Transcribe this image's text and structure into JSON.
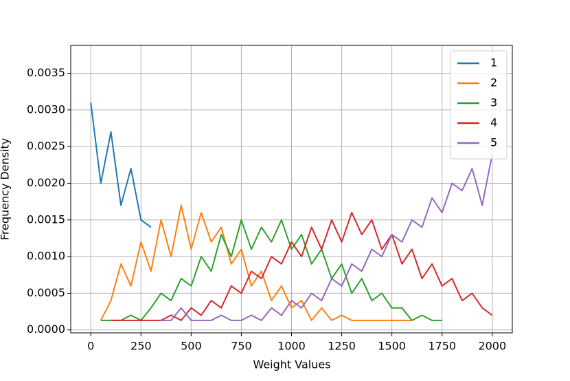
{
  "chart_data": {
    "type": "line",
    "xlabel": "Weight Values",
    "ylabel": "Frequency Density",
    "x": [
      0,
      50,
      100,
      150,
      200,
      250,
      300,
      350,
      400,
      450,
      500,
      550,
      600,
      650,
      700,
      750,
      800,
      850,
      900,
      950,
      1000,
      1050,
      1100,
      1150,
      1200,
      1250,
      1300,
      1350,
      1400,
      1450,
      1500,
      1550,
      1600,
      1650,
      1700,
      1750,
      1800,
      1850,
      1900,
      1950,
      2000
    ],
    "series": [
      {
        "name": "1",
        "color": "#1f77b4",
        "values": [
          0.0031,
          0.002,
          0.0027,
          0.0017,
          0.0022,
          0.0015,
          0.0014,
          null,
          null,
          null,
          null,
          null,
          null,
          null,
          null,
          null,
          null,
          null,
          null,
          null,
          null,
          null,
          null,
          null,
          null,
          null,
          null,
          null,
          null,
          null,
          null,
          null,
          null,
          null,
          null,
          null,
          null,
          null,
          null,
          null,
          null
        ]
      },
      {
        "name": "2",
        "color": "#ff7f0e",
        "values": [
          null,
          0.00013,
          0.0004,
          0.0009,
          0.0006,
          0.0012,
          0.0008,
          0.0015,
          0.001,
          0.0017,
          0.0011,
          0.0016,
          0.0012,
          0.0014,
          0.0009,
          0.0011,
          0.0006,
          0.0008,
          0.0004,
          0.0006,
          0.0003,
          0.0004,
          0.00013,
          0.0003,
          0.00013,
          0.0002,
          0.00013,
          0.00013,
          0.00013,
          0.00013,
          0.00013,
          0.00013,
          0.00013,
          null,
          null,
          null,
          null,
          null,
          null,
          null,
          null
        ]
      },
      {
        "name": "3",
        "color": "#2ca02c",
        "values": [
          null,
          0.00013,
          0.00013,
          0.00013,
          0.0002,
          0.00013,
          0.0003,
          0.0005,
          0.0004,
          0.0007,
          0.0006,
          0.001,
          0.0008,
          0.0013,
          0.001,
          0.0015,
          0.0011,
          0.0014,
          0.0012,
          0.0015,
          0.0011,
          0.0013,
          0.0009,
          0.0011,
          0.0007,
          0.0009,
          0.0005,
          0.0007,
          0.0004,
          0.0005,
          0.0003,
          0.0003,
          0.00013,
          0.0002,
          0.00013,
          0.00013,
          null,
          null,
          null,
          null,
          null
        ]
      },
      {
        "name": "4",
        "color": "#d62728",
        "values": [
          null,
          null,
          0.00013,
          0.00013,
          0.00013,
          0.00013,
          0.00013,
          0.00013,
          0.0002,
          0.00013,
          0.0003,
          0.0002,
          0.0004,
          0.0003,
          0.0006,
          0.0005,
          0.0008,
          0.0007,
          0.001,
          0.0009,
          0.0012,
          0.001,
          0.0014,
          0.0011,
          0.0015,
          0.0012,
          0.0016,
          0.0013,
          0.0015,
          0.0011,
          0.0013,
          0.0009,
          0.0011,
          0.0007,
          0.0009,
          0.0006,
          0.0007,
          0.0004,
          0.0005,
          0.0003,
          0.0002
        ]
      },
      {
        "name": "5",
        "color": "#9467bd",
        "values": [
          null,
          null,
          null,
          null,
          null,
          null,
          null,
          0.00013,
          0.00013,
          0.0003,
          0.00013,
          0.00013,
          0.00013,
          0.0002,
          0.00013,
          0.00013,
          0.0002,
          0.00013,
          0.0003,
          0.0002,
          0.0004,
          0.0003,
          0.0005,
          0.0004,
          0.0007,
          0.0006,
          0.0009,
          0.0008,
          0.0011,
          0.001,
          0.0013,
          0.0012,
          0.0015,
          0.0014,
          0.0018,
          0.0016,
          0.002,
          0.0019,
          0.0022,
          0.0017,
          0.0024
        ]
      }
    ],
    "xlim": [
      -100,
      2100
    ],
    "xticks": [
      0,
      250,
      500,
      750,
      1000,
      1250,
      1500,
      1750,
      2000
    ],
    "ylim": [
      -4e-05,
      0.00388
    ],
    "yticks": [
      {
        "value": 0,
        "label": "0.0000"
      },
      {
        "value": 0.0005,
        "label": "0.0005"
      },
      {
        "value": 0.001,
        "label": "0.0010"
      },
      {
        "value": 0.0015,
        "label": "0.0015"
      },
      {
        "value": 0.002,
        "label": "0.0020"
      },
      {
        "value": 0.0025,
        "label": "0.0025"
      },
      {
        "value": 0.003,
        "label": "0.0030"
      },
      {
        "value": 0.0035,
        "label": "0.0035"
      }
    ],
    "grid": true,
    "legend": "upper right"
  }
}
